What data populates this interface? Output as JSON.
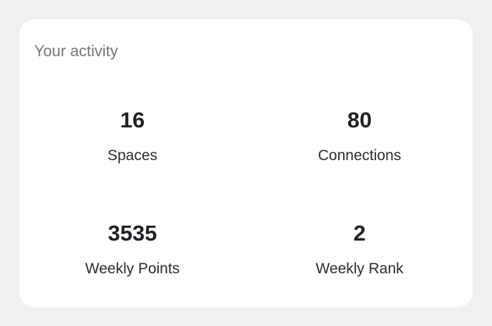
{
  "card": {
    "title": "Your activity"
  },
  "stats": [
    {
      "value": "16",
      "label": "Spaces"
    },
    {
      "value": "80",
      "label": "Connections"
    },
    {
      "value": "3535",
      "label": "Weekly Points"
    },
    {
      "value": "2",
      "label": "Weekly Rank"
    }
  ],
  "colors": {
    "background": "#f0f0f0",
    "card": "#ffffff",
    "title": "#757575",
    "value": "#1f2326",
    "label": "#2b2b2b"
  }
}
